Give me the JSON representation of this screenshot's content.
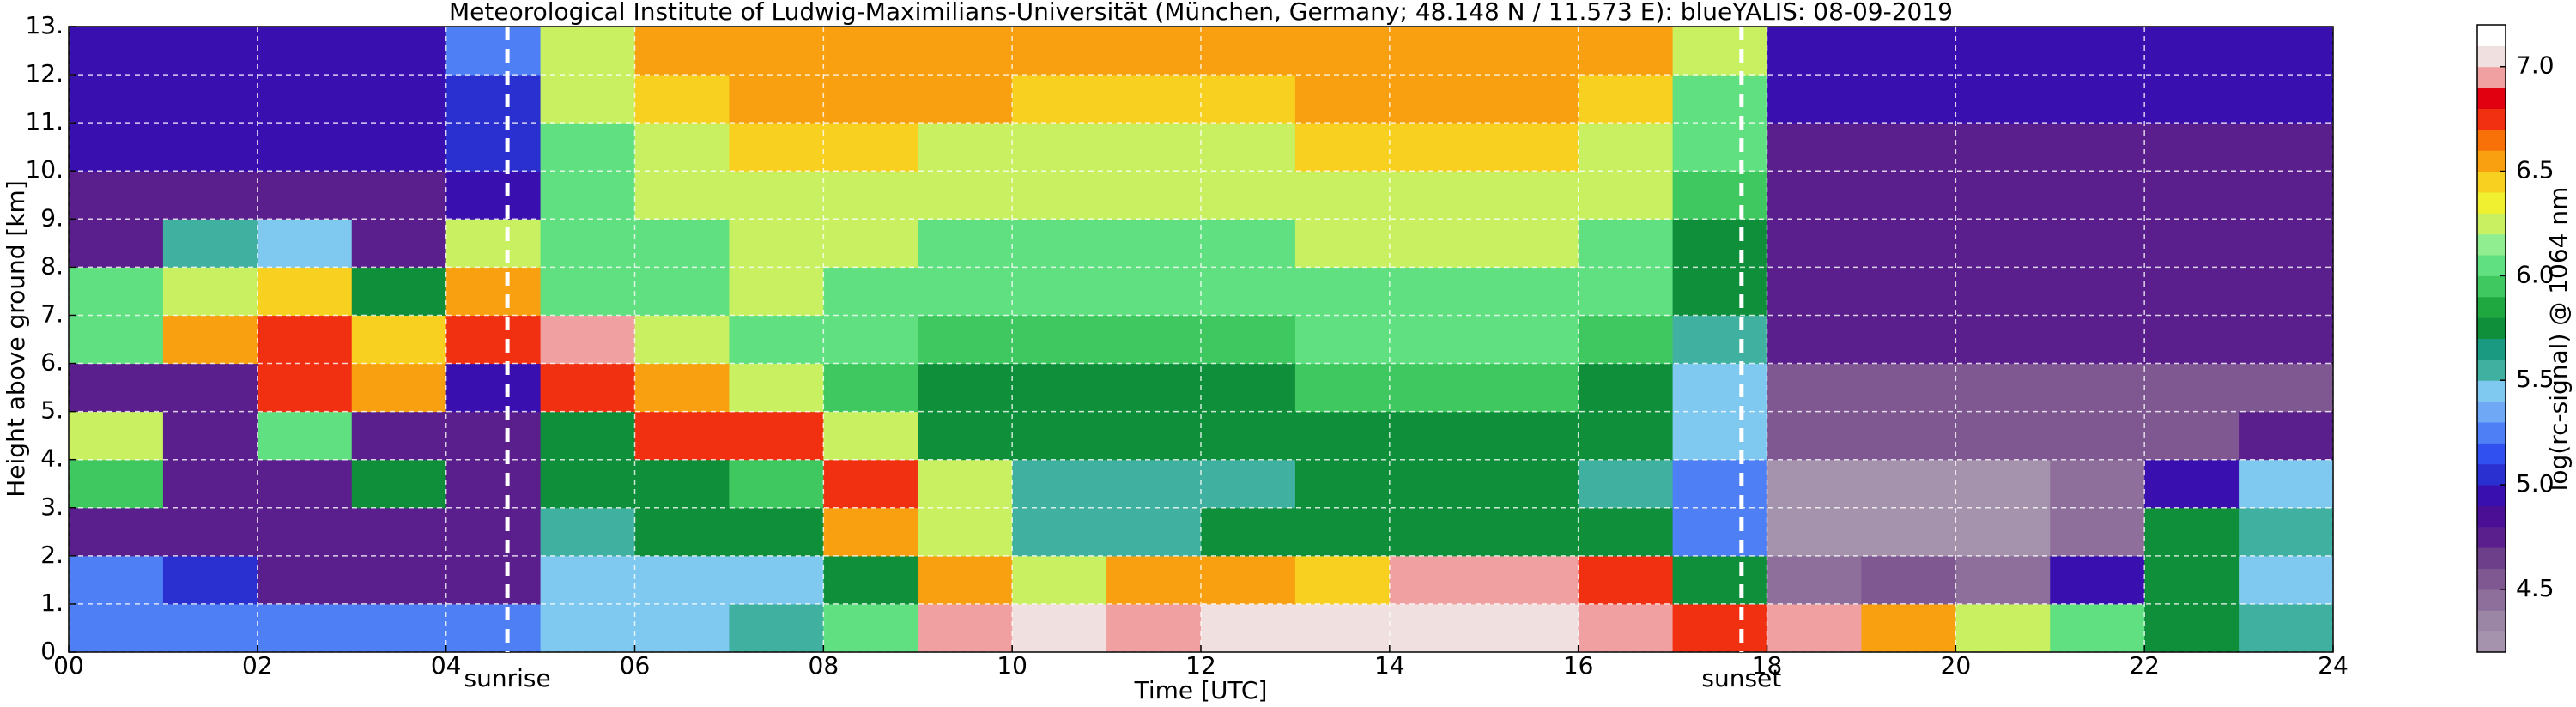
{
  "chart_data": {
    "type": "heatmap",
    "title": "Meteorological Institute of Ludwig-Maximilians-Universität (München, Germany; 48.148 N / 11.573 E):    blueYALIS: 08-09-2019",
    "x_label": "Time [UTC]",
    "y_label": "Height above ground [km]",
    "colorbar_label": "log(rc-signal) @ 1064 nm",
    "xlim": [
      0,
      24
    ],
    "ylim": [
      0,
      13
    ],
    "xticks": [
      {
        "value": 0,
        "label": "00"
      },
      {
        "value": 2,
        "label": "02"
      },
      {
        "value": 4,
        "label": "04"
      },
      {
        "value": 6,
        "label": "06"
      },
      {
        "value": 8,
        "label": "08"
      },
      {
        "value": 10,
        "label": "10"
      },
      {
        "value": 12,
        "label": "12"
      },
      {
        "value": 14,
        "label": "14"
      },
      {
        "value": 16,
        "label": "16"
      },
      {
        "value": 18,
        "label": "18"
      },
      {
        "value": 20,
        "label": "20"
      },
      {
        "value": 22,
        "label": "22"
      },
      {
        "value": 24,
        "label": "24"
      }
    ],
    "yticks": [
      {
        "value": 0,
        "label": "0."
      },
      {
        "value": 1,
        "label": "1."
      },
      {
        "value": 2,
        "label": "2."
      },
      {
        "value": 3,
        "label": "3."
      },
      {
        "value": 4,
        "label": "4."
      },
      {
        "value": 5,
        "label": "5."
      },
      {
        "value": 6,
        "label": "6."
      },
      {
        "value": 7,
        "label": "7."
      },
      {
        "value": 8,
        "label": "8."
      },
      {
        "value": 9,
        "label": "9."
      },
      {
        "value": 10,
        "label": "10."
      },
      {
        "value": 11,
        "label": "11."
      },
      {
        "value": 12,
        "label": "12."
      },
      {
        "value": 13,
        "label": "13."
      }
    ],
    "grid": true,
    "clim": [
      4.2,
      7.2
    ],
    "cticks": [
      {
        "value": 4.5,
        "label": "4.5"
      },
      {
        "value": 5,
        "label": "5.0"
      },
      {
        "value": 5.5,
        "label": "5.5"
      },
      {
        "value": 6,
        "label": "6.0"
      },
      {
        "value": 6.5,
        "label": "6.5"
      },
      {
        "value": 7,
        "label": "7.0"
      }
    ],
    "colors": [
      "#a592ad",
      "#9c86a6",
      "#8e6e9a",
      "#7f5791",
      "#6d3f8a",
      "#5a1f8c",
      "#4b0f96",
      "#3a0fb0",
      "#2a2fd0",
      "#3050f0",
      "#4f7ff5",
      "#6fa8f5",
      "#7fc8f0",
      "#40b0a0",
      "#1a9a80",
      "#0f8f3a",
      "#20a840",
      "#40c860",
      "#60e080",
      "#90ee90",
      "#c8f060",
      "#f0f030",
      "#f8d020",
      "#f8a010",
      "#f87008",
      "#f03010",
      "#e00010",
      "#f0a0a0",
      "#f0e0e0",
      "#ffffff"
    ],
    "x_edges": [
      0,
      1,
      2,
      3,
      4,
      5,
      6,
      7,
      8,
      9,
      10,
      11,
      12,
      13,
      14,
      15,
      16,
      17,
      18,
      19,
      20,
      21,
      22,
      23,
      24
    ],
    "y_edges": [
      0,
      1,
      2,
      3,
      4,
      5,
      6,
      7,
      8,
      9,
      10,
      11,
      12,
      13
    ],
    "z": [
      [
        5.3,
        5.3,
        5.2,
        5.2,
        5.3,
        5.4,
        5.4,
        5.6,
        6.1,
        7.0,
        7.1,
        7.0,
        7.1,
        7.1,
        7.1,
        7.1,
        7.0,
        6.8,
        6.9,
        6.6,
        6.3,
        6.0,
        5.8,
        5.6
      ],
      [
        5.2,
        5.1,
        4.7,
        4.7,
        4.7,
        5.4,
        5.5,
        5.5,
        5.8,
        6.6,
        6.2,
        6.5,
        6.6,
        6.4,
        6.9,
        6.9,
        6.8,
        5.7,
        4.4,
        4.6,
        4.5,
        5.0,
        5.8,
        5.5
      ],
      [
        4.7,
        4.7,
        4.7,
        4.7,
        4.7,
        5.6,
        5.7,
        5.7,
        6.6,
        6.3,
        5.6,
        5.6,
        5.7,
        5.7,
        5.7,
        5.7,
        5.8,
        5.3,
        4.3,
        4.3,
        4.3,
        4.5,
        5.8,
        5.6
      ],
      [
        5.9,
        4.7,
        4.7,
        5.8,
        4.7,
        5.8,
        5.8,
        5.9,
        6.8,
        6.2,
        5.6,
        5.6,
        5.6,
        5.7,
        5.7,
        5.7,
        5.6,
        5.3,
        4.3,
        4.3,
        4.3,
        4.5,
        4.9,
        5.5
      ],
      [
        6.2,
        4.8,
        6.0,
        4.7,
        4.8,
        5.8,
        6.8,
        6.7,
        6.2,
        5.7,
        5.7,
        5.7,
        5.7,
        5.8,
        5.8,
        5.8,
        5.7,
        5.4,
        4.6,
        4.6,
        4.6,
        4.6,
        4.6,
        4.7
      ],
      [
        4.7,
        4.8,
        6.8,
        6.6,
        5.0,
        6.7,
        6.6,
        6.2,
        5.9,
        5.8,
        5.8,
        5.8,
        5.8,
        5.9,
        5.9,
        5.9,
        5.8,
        5.5,
        4.6,
        4.6,
        4.6,
        4.6,
        4.6,
        4.6
      ],
      [
        6.1,
        6.5,
        6.7,
        6.4,
        6.8,
        6.9,
        6.3,
        6.1,
        6.0,
        5.9,
        5.9,
        5.9,
        5.9,
        6.0,
        6.0,
        6.0,
        5.9,
        5.6,
        4.7,
        4.7,
        4.7,
        4.7,
        4.7,
        4.7
      ],
      [
        6.0,
        6.3,
        6.4,
        5.8,
        6.6,
        6.0,
        6.1,
        6.2,
        6.1,
        6.0,
        6.0,
        6.0,
        6.0,
        6.1,
        6.1,
        6.1,
        6.0,
        5.7,
        4.7,
        4.7,
        4.7,
        4.7,
        4.7,
        4.7
      ],
      [
        4.8,
        5.6,
        5.4,
        4.8,
        6.2,
        6.0,
        6.1,
        6.2,
        6.2,
        6.1,
        6.1,
        6.1,
        6.1,
        6.2,
        6.2,
        6.2,
        6.1,
        5.8,
        4.8,
        4.8,
        4.8,
        4.8,
        4.8,
        4.8
      ],
      [
        4.8,
        4.8,
        4.8,
        4.8,
        5.0,
        6.0,
        6.2,
        6.3,
        6.3,
        6.2,
        6.2,
        6.2,
        6.2,
        6.3,
        6.3,
        6.3,
        6.2,
        5.9,
        4.8,
        4.8,
        4.8,
        4.8,
        4.8,
        4.8
      ],
      [
        4.9,
        4.9,
        4.9,
        4.9,
        5.1,
        6.1,
        6.3,
        6.4,
        6.4,
        6.3,
        6.3,
        6.3,
        6.3,
        6.4,
        6.4,
        6.4,
        6.3,
        6.0,
        4.8,
        4.8,
        4.8,
        4.8,
        4.8,
        4.8
      ],
      [
        4.9,
        4.9,
        4.9,
        4.9,
        5.1,
        6.2,
        6.4,
        6.5,
        6.5,
        6.5,
        6.4,
        6.4,
        6.4,
        6.5,
        6.5,
        6.5,
        6.4,
        6.1,
        4.9,
        4.9,
        4.9,
        4.9,
        4.9,
        4.9
      ],
      [
        5.0,
        5.0,
        5.0,
        5.0,
        5.2,
        6.3,
        6.5,
        6.6,
        6.6,
        6.6,
        6.6,
        6.6,
        6.6,
        6.6,
        6.6,
        6.6,
        6.5,
        6.2,
        4.9,
        4.9,
        4.9,
        4.9,
        4.9,
        4.9
      ]
    ],
    "annotations": [
      {
        "text": "sunrise",
        "x": 4.65
      },
      {
        "text": "sunset",
        "x": 17.73
      }
    ]
  }
}
